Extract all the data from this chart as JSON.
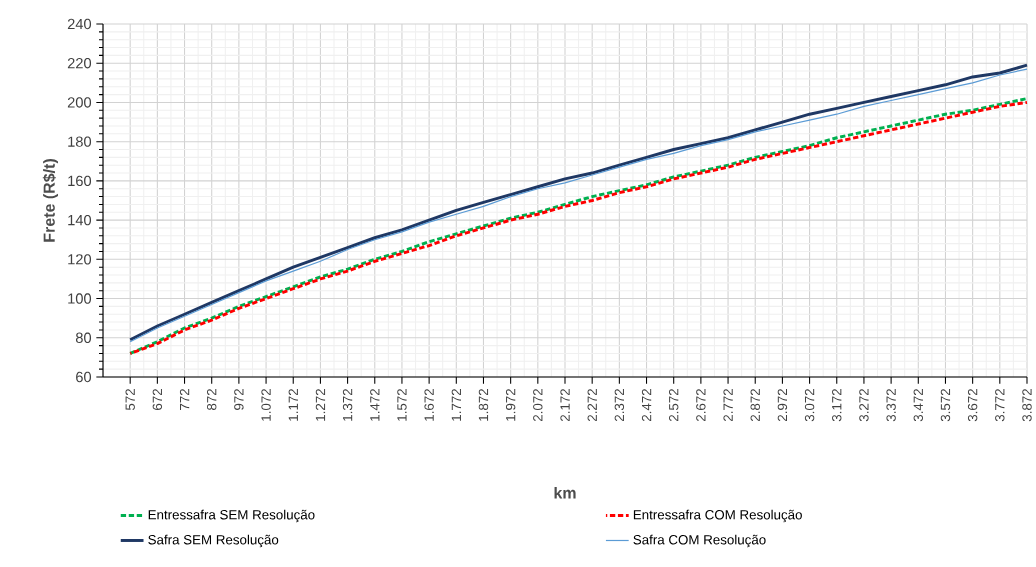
{
  "chart_data": {
    "type": "line",
    "xlabel": "km",
    "ylabel": "Frete (R$/t)",
    "categories": [
      "572",
      "672",
      "772",
      "872",
      "972",
      "1.072",
      "1.172",
      "1.272",
      "1.372",
      "1.472",
      "1.572",
      "1.672",
      "1.772",
      "1.872",
      "1.972",
      "2.072",
      "2.172",
      "2.272",
      "2.372",
      "2.472",
      "2.572",
      "2.672",
      "2.772",
      "2.872",
      "2.972",
      "3.072",
      "3.172",
      "3.272",
      "3.372",
      "3.472",
      "3.572",
      "3.672",
      "3.772",
      "3.872"
    ],
    "series": [
      {
        "name": "Entressafra SEM Resolução",
        "color": "#00b050",
        "line_style": "dashed",
        "values": [
          72,
          78,
          85,
          90,
          96,
          101,
          106,
          111,
          115,
          120,
          124,
          129,
          133,
          137,
          141,
          144,
          148,
          152,
          155,
          158,
          162,
          165,
          168,
          172,
          175,
          178,
          182,
          185,
          188,
          191,
          194,
          196,
          199,
          202
        ]
      },
      {
        "name": "Entressafra COM Resolução",
        "color": "#ff0000",
        "line_style": "dashed",
        "values": [
          72,
          77,
          84,
          89,
          95,
          100,
          105,
          110,
          114,
          119,
          123,
          127,
          132,
          136,
          140,
          143,
          147,
          150,
          154,
          157,
          161,
          164,
          167,
          171,
          174,
          177,
          180,
          183,
          186,
          189,
          192,
          195,
          198,
          200
        ]
      },
      {
        "name": "Safra SEM Resolução",
        "color": "#1f3864",
        "line_style": "solid",
        "values": [
          79,
          86,
          92,
          98,
          104,
          110,
          116,
          121,
          126,
          131,
          135,
          140,
          145,
          149,
          153,
          157,
          161,
          164,
          168,
          172,
          176,
          179,
          182,
          186,
          190,
          194,
          197,
          200,
          203,
          206,
          209,
          213,
          215,
          219
        ]
      },
      {
        "name": "Safra COM Resolução",
        "color": "#5b9bd5",
        "line_style": "solid",
        "values": [
          78,
          85,
          91,
          97,
          103,
          109,
          114,
          119,
          125,
          130,
          134,
          139,
          143,
          147,
          152,
          156,
          159,
          163,
          167,
          171,
          174,
          178,
          181,
          185,
          188,
          191,
          194,
          198,
          201,
          204,
          207,
          210,
          214,
          217
        ]
      }
    ],
    "ylim": [
      60,
      240
    ],
    "yticks": [
      60,
      80,
      100,
      120,
      140,
      160,
      180,
      200,
      220,
      240
    ],
    "grid": true,
    "legend": "bottom",
    "marker": "none"
  }
}
